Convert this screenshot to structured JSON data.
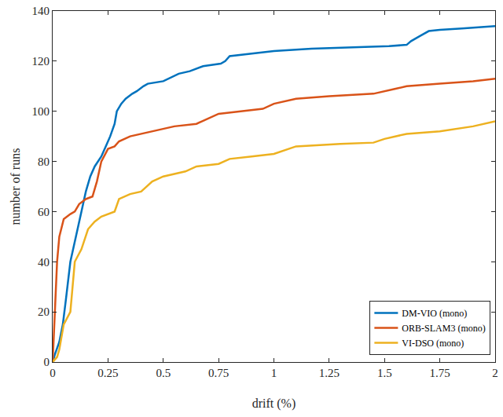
{
  "chart_data": {
    "type": "line",
    "x_label": "drift (%)",
    "y_label": "number of runs",
    "xlim": [
      0,
      2
    ],
    "xticks": [
      0,
      0.25,
      0.5,
      0.75,
      1,
      1.25,
      1.5,
      1.75,
      2
    ],
    "ylim": [
      0,
      140
    ],
    "yticks": [
      0,
      20,
      40,
      60,
      80,
      100,
      120,
      140
    ],
    "grid": false,
    "legend": "bottom-right",
    "series": [
      {
        "name": "DM-VIO (mono)",
        "color": "#0072bd",
        "x": [
          0.0,
          0.01,
          0.03,
          0.046,
          0.06,
          0.08,
          0.1,
          0.116,
          0.13,
          0.15,
          0.17,
          0.19,
          0.22,
          0.24,
          0.26,
          0.28,
          0.29,
          0.31,
          0.33,
          0.36,
          0.38,
          0.41,
          0.43,
          0.5,
          0.57,
          0.62,
          0.68,
          0.76,
          0.78,
          0.8,
          0.9,
          1.0,
          1.17,
          1.35,
          1.52,
          1.6,
          1.62,
          1.66,
          1.7,
          1.75,
          1.85,
          2.0
        ],
        "values": [
          0,
          3,
          8,
          15,
          25,
          40,
          48,
          55,
          60,
          68,
          74,
          78,
          82,
          86,
          90,
          95,
          100,
          103,
          105,
          107,
          108,
          110,
          111,
          112,
          115,
          116,
          118,
          119,
          120,
          122,
          123,
          124,
          125,
          125.5,
          126,
          126.5,
          128,
          130,
          132,
          132.5,
          133,
          134
        ]
      },
      {
        "name": "ORB-SLAM3 (mono)",
        "color": "#d95319",
        "x": [
          0.0,
          0.005,
          0.01,
          0.02,
          0.03,
          0.05,
          0.08,
          0.1,
          0.12,
          0.15,
          0.18,
          0.2,
          0.22,
          0.25,
          0.28,
          0.3,
          0.35,
          0.4,
          0.5,
          0.55,
          0.65,
          0.7,
          0.75,
          0.85,
          0.95,
          1.0,
          1.1,
          1.25,
          1.45,
          1.55,
          1.6,
          1.75,
          1.9,
          2.0
        ],
        "values": [
          0,
          10,
          25,
          40,
          50,
          57,
          59,
          60,
          63,
          65,
          66,
          72,
          80,
          85,
          86,
          88,
          90,
          91,
          93,
          94,
          95,
          97,
          99,
          100,
          101,
          103,
          105,
          106,
          107,
          109,
          110,
          111,
          112,
          113
        ]
      },
      {
        "name": "VI-DSO (mono)",
        "color": "#edb120",
        "x": [
          0.0,
          0.02,
          0.03,
          0.05,
          0.08,
          0.09,
          0.1,
          0.13,
          0.16,
          0.19,
          0.22,
          0.28,
          0.3,
          0.35,
          0.4,
          0.45,
          0.5,
          0.6,
          0.65,
          0.75,
          0.8,
          0.9,
          1.0,
          1.1,
          1.3,
          1.45,
          1.5,
          1.6,
          1.75,
          1.9,
          2.0
        ],
        "values": [
          0,
          2,
          5,
          15,
          20,
          30,
          40,
          45,
          53,
          56,
          58,
          60,
          65,
          67,
          68,
          72,
          74,
          76,
          78,
          79,
          81,
          82,
          83,
          86,
          87,
          87.5,
          89,
          91,
          92,
          94,
          96
        ]
      }
    ]
  }
}
